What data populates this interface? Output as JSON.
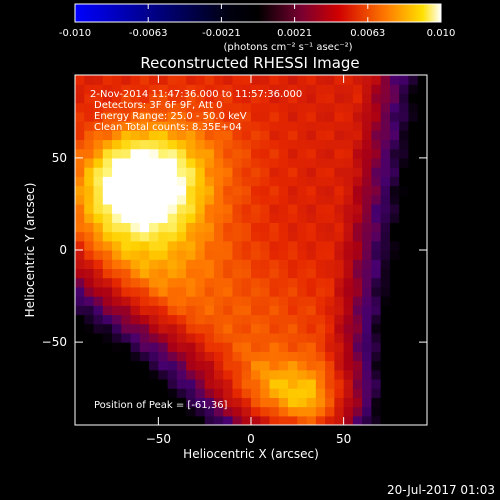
{
  "chart_data": {
    "type": "heatmap",
    "title": "Reconstructed RHESSI Image",
    "xlabel": "Heliocentric X (arcsec)",
    "ylabel": "Heliocentric Y (arcsec)",
    "xlim": [
      -95,
      95
    ],
    "ylim": [
      -95,
      95
    ],
    "xticks": [
      -50,
      0,
      50
    ],
    "yticks": [
      -50,
      0,
      50
    ],
    "colorbar": {
      "range": [
        -0.01,
        0.01
      ],
      "ticks": [
        "-0.010",
        "-0.0063",
        "-0.0021",
        "0.0021",
        "0.0063",
        "0.010"
      ],
      "label": "(photons cm⁻² s⁻¹ asec⁻²)",
      "colormap": [
        "#0000ff",
        "#000000",
        "#5a0080",
        "#c80000",
        "#ff6400",
        "#ffe000",
        "#ffffff"
      ]
    },
    "annotations": [
      " 2-Nov-2014 11:47:36.000 to 11:57:36.000",
      "Detectors: 3F 6F 9F, Att 0",
      "Energy Range: 25.0 - 50.0 keV",
      "Clean     Total counts: 8.35E+04"
    ],
    "peak_label": "Position of Peak = [-61,36]",
    "peak_position": [
      -61,
      36
    ]
  },
  "footer": {
    "timestamp": "20-Jul-2017 01:03"
  }
}
